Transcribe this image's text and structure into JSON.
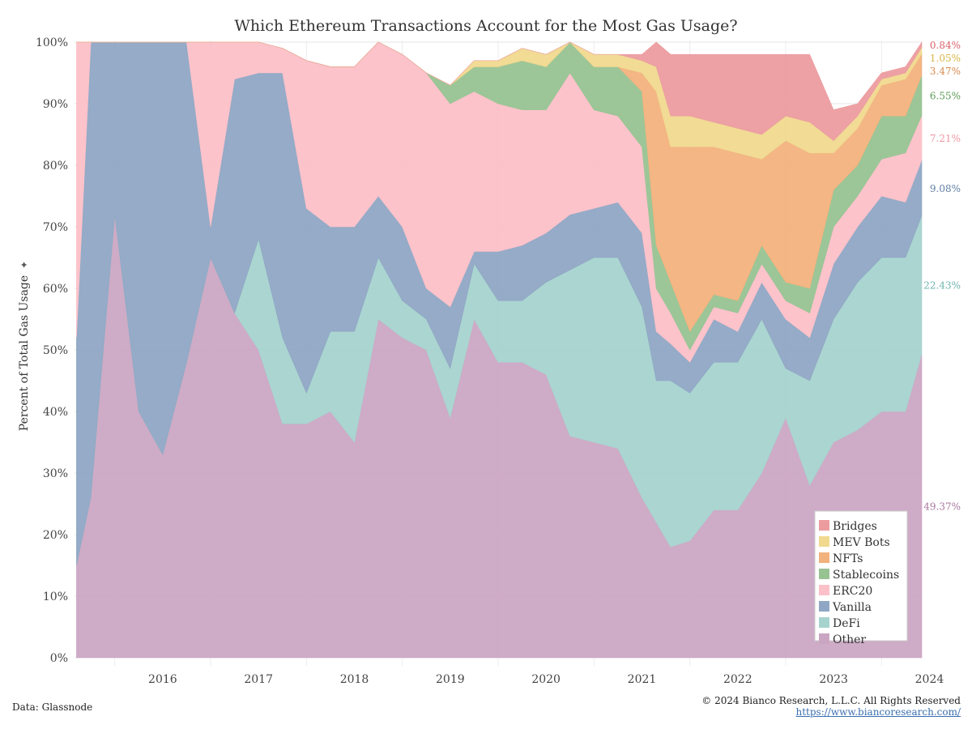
{
  "page": {
    "source": "Data: Glassnode",
    "copyright": "© 2024 Bianco Research, L.L.C. All Rights Reserved",
    "url": "https://www.biancoresearch.com/"
  },
  "chart_data": {
    "type": "area",
    "stacked": true,
    "title": "Which Ethereum Transactions Account for the Most Gas Usage?",
    "ylabel": "Percent of Total Gas Usage",
    "xlabel": "",
    "ylim": [
      0,
      100
    ],
    "xlim": [
      2015.58,
      2024.42
    ],
    "y_ticks": [
      "0%",
      "10%",
      "20%",
      "30%",
      "40%",
      "50%",
      "60%",
      "70%",
      "80%",
      "90%",
      "100%"
    ],
    "x_ticks": [
      "2016",
      "2017",
      "2018",
      "2019",
      "2020",
      "2021",
      "2022",
      "2023",
      "2024"
    ],
    "grid": true,
    "legend_position": "bottom-right",
    "x": [
      2015.6,
      2015.75,
      2016.0,
      2016.25,
      2016.5,
      2016.75,
      2017.0,
      2017.25,
      2017.5,
      2017.75,
      2018.0,
      2018.25,
      2018.5,
      2018.75,
      2019.0,
      2019.25,
      2019.5,
      2019.75,
      2020.0,
      2020.25,
      2020.5,
      2020.75,
      2021.0,
      2021.25,
      2021.5,
      2021.65,
      2021.8,
      2022.0,
      2022.25,
      2022.5,
      2022.75,
      2023.0,
      2023.25,
      2023.5,
      2023.75,
      2024.0,
      2024.25,
      2024.42
    ],
    "series": [
      {
        "name": "Other",
        "color": "#cba6c3",
        "values": [
          15,
          26,
          72,
          40,
          33,
          48,
          65,
          56,
          50,
          38,
          38,
          40,
          35,
          55,
          52,
          50,
          39,
          55,
          48,
          48,
          46,
          36,
          35,
          34,
          26,
          22,
          18,
          19,
          24,
          24,
          30,
          39,
          28,
          35,
          37,
          40,
          40,
          49.37
        ]
      },
      {
        "name": "DeFi",
        "color": "#a7d3cf",
        "values": [
          0,
          0,
          0,
          0,
          0,
          0,
          0,
          0,
          18,
          14,
          5,
          13,
          18,
          10,
          6,
          5,
          8,
          9,
          10,
          10,
          15,
          27,
          30,
          31,
          31,
          23,
          27,
          24,
          24,
          24,
          25,
          8,
          17,
          20,
          24,
          25,
          25,
          22.43
        ]
      },
      {
        "name": "Vanilla",
        "color": "#8fa7c4",
        "values": [
          37,
          74,
          28,
          60,
          67,
          52,
          5,
          38,
          27,
          43,
          30,
          17,
          17,
          10,
          12,
          5,
          10,
          2,
          8,
          9,
          8,
          9,
          8,
          9,
          12,
          8,
          6,
          5,
          7,
          5,
          6,
          8,
          7,
          9,
          9,
          10,
          9,
          9.08
        ]
      },
      {
        "name": "ERC20",
        "color": "#fcc0c8",
        "values": [
          48,
          0,
          0,
          0,
          0,
          0,
          30,
          6,
          5,
          4,
          24,
          26,
          26,
          28,
          28,
          35,
          33,
          26,
          24,
          22,
          20,
          23,
          16,
          14,
          14,
          7,
          5,
          2,
          2,
          3,
          3,
          3,
          4,
          6,
          5,
          6,
          8,
          7.21
        ]
      },
      {
        "name": "Stablecoins",
        "color": "#97c392",
        "values": [
          0,
          0,
          0,
          0,
          0,
          0,
          0,
          0,
          0,
          0,
          0,
          0,
          0,
          0,
          0,
          0,
          3,
          4,
          6,
          8,
          7,
          5,
          7,
          8,
          9,
          7,
          5,
          3,
          2,
          2,
          3,
          3,
          4,
          6,
          5,
          7,
          6,
          6.55
        ]
      },
      {
        "name": "NFTs",
        "color": "#f2b27d",
        "values": [
          0,
          0,
          0,
          0,
          0,
          0,
          0,
          0,
          0,
          0,
          0,
          0,
          0,
          0,
          0,
          0,
          0,
          0,
          0,
          0,
          0,
          0,
          0,
          0,
          3,
          25,
          22,
          30,
          24,
          24,
          14,
          23,
          22,
          6,
          6,
          5,
          6,
          3.47
        ]
      },
      {
        "name": "MEV Bots",
        "color": "#f0d98f",
        "values": [
          0,
          0,
          0,
          0,
          0,
          0,
          0,
          0,
          0,
          0,
          0,
          0,
          0,
          0,
          0,
          0,
          0,
          1,
          1,
          2,
          2,
          2,
          2,
          2,
          2,
          4,
          5,
          5,
          4,
          4,
          4,
          4,
          5,
          2,
          2,
          1,
          1,
          1.05
        ]
      },
      {
        "name": "Bridges",
        "color": "#ec9c9f",
        "values": [
          0,
          0,
          0,
          0,
          0,
          0,
          0,
          0,
          0,
          0,
          0,
          0,
          0,
          0,
          0,
          0,
          0,
          0,
          0,
          0,
          0,
          0,
          0,
          0,
          1,
          4,
          10,
          10,
          11,
          12,
          13,
          10,
          11,
          5,
          2,
          1,
          1,
          0.84
        ]
      }
    ],
    "end_labels": [
      {
        "series": "Bridges",
        "text": "0.84%",
        "color": "#d9626a"
      },
      {
        "series": "MEV Bots",
        "text": "1.05%",
        "color": "#d8b548"
      },
      {
        "series": "NFTs",
        "text": "3.47%",
        "color": "#d9884a"
      },
      {
        "series": "Stablecoins",
        "text": "6.55%",
        "color": "#5a9a55"
      },
      {
        "series": "ERC20",
        "text": "7.21%",
        "color": "#ee97a3"
      },
      {
        "series": "Vanilla",
        "text": "9.08%",
        "color": "#5f7ea3"
      },
      {
        "series": "DeFi",
        "text": "22.43%",
        "color": "#6fb5af"
      },
      {
        "series": "Other",
        "text": "49.37%",
        "color": "#a6789e"
      }
    ]
  }
}
